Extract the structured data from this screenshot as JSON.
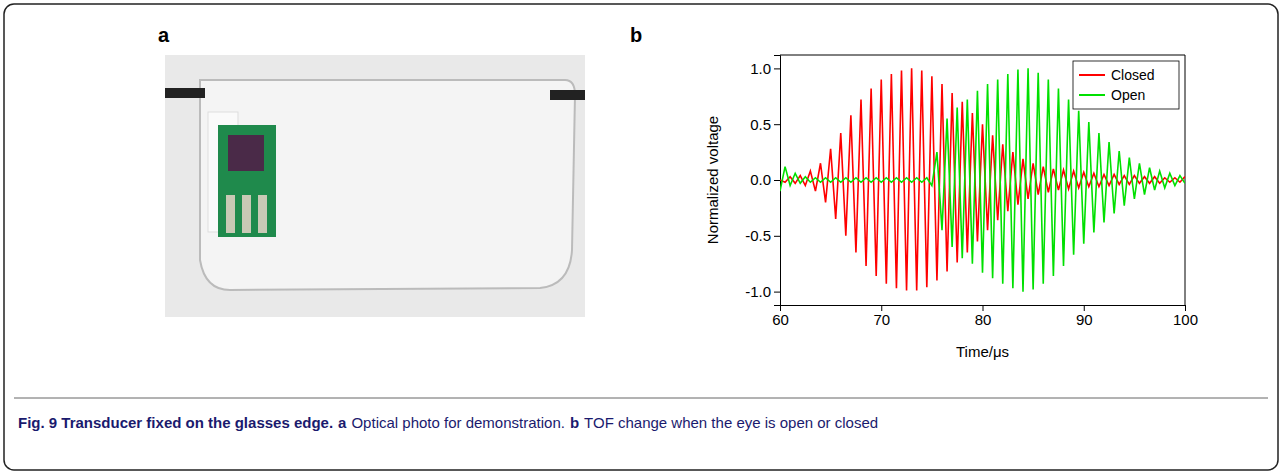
{
  "chart_data": {
    "type": "line",
    "x_label": "Time/μs",
    "y_label": "Normalized voltage",
    "x": [
      60,
      60.5,
      61,
      61.5,
      62,
      62.5,
      63,
      63.5,
      64,
      64.5,
      65,
      65.5,
      66,
      66.5,
      67,
      67.5,
      68,
      68.5,
      69,
      69.5,
      70,
      70.5,
      71,
      71.5,
      72,
      72.5,
      73,
      73.5,
      74,
      74.5,
      75,
      75.5,
      76,
      76.5,
      77,
      77.5,
      78,
      78.5,
      79,
      79.5,
      80,
      80.5,
      81,
      81.5,
      82,
      82.5,
      83,
      83.5,
      84,
      84.5,
      85,
      85.5,
      86,
      86.5,
      87,
      87.5,
      88,
      88.5,
      89,
      89.5,
      90,
      90.5,
      91,
      91.5,
      92,
      92.5,
      93,
      93.5,
      94,
      94.5,
      95,
      95.5,
      96,
      96.5,
      97,
      97.5,
      98,
      98.5,
      99,
      99.5,
      100
    ],
    "series": [
      {
        "name": "Closed",
        "color": "#ff0000",
        "values": [
          0.0,
          -0.02,
          0.03,
          -0.03,
          0.04,
          -0.05,
          0.08,
          -0.1,
          0.15,
          -0.2,
          0.28,
          -0.35,
          0.42,
          -0.5,
          0.58,
          -0.65,
          0.72,
          -0.77,
          0.82,
          -0.86,
          0.9,
          -0.93,
          0.95,
          -0.97,
          0.98,
          -0.99,
          1.0,
          -0.99,
          0.98,
          -0.96,
          0.93,
          -0.9,
          0.86,
          -0.82,
          0.78,
          -0.74,
          0.7,
          -0.65,
          0.6,
          -0.55,
          0.5,
          -0.45,
          0.4,
          -0.36,
          0.32,
          -0.28,
          0.25,
          -0.22,
          0.19,
          -0.17,
          0.15,
          -0.13,
          0.12,
          -0.11,
          0.1,
          -0.09,
          0.09,
          -0.08,
          0.08,
          -0.07,
          0.07,
          -0.06,
          0.06,
          -0.06,
          0.05,
          -0.05,
          0.05,
          -0.04,
          0.04,
          -0.04,
          0.04,
          -0.03,
          0.03,
          -0.03,
          0.03,
          -0.03,
          0.02,
          -0.02,
          0.02,
          -0.02,
          0.03
        ]
      },
      {
        "name": "Open",
        "color": "#00e000",
        "values": [
          -0.1,
          0.12,
          -0.05,
          0.06,
          -0.03,
          0.03,
          -0.02,
          0.02,
          -0.02,
          0.02,
          -0.02,
          0.02,
          -0.02,
          0.02,
          -0.02,
          0.02,
          -0.02,
          0.02,
          -0.02,
          0.02,
          -0.02,
          0.02,
          -0.02,
          0.02,
          -0.02,
          0.02,
          -0.02,
          0.02,
          -0.02,
          0.02,
          -0.05,
          0.25,
          -0.45,
          0.55,
          -0.6,
          0.65,
          -0.7,
          0.72,
          -0.75,
          0.8,
          -0.83,
          0.86,
          -0.88,
          0.9,
          -0.93,
          0.95,
          -0.97,
          0.99,
          -1.0,
          1.0,
          -0.98,
          0.96,
          -0.93,
          0.9,
          -0.86,
          0.82,
          -0.77,
          0.72,
          -0.67,
          0.62,
          -0.57,
          0.52,
          -0.47,
          0.42,
          -0.38,
          0.34,
          -0.3,
          0.26,
          -0.23,
          0.2,
          -0.17,
          0.15,
          -0.13,
          0.11,
          -0.09,
          0.08,
          -0.07,
          0.06,
          -0.05,
          0.04,
          -0.03
        ]
      }
    ],
    "xlim": [
      60,
      100
    ],
    "xticks": [
      60,
      70,
      80,
      90,
      100
    ],
    "ylim": [
      -1.12,
      1.12
    ],
    "yticks": [
      {
        "value": -1,
        "label": "-1.0"
      },
      -0.5,
      {
        "value": 0,
        "label": "0.0"
      },
      0.5,
      {
        "value": 1,
        "label": "1.0"
      }
    ],
    "grid": false,
    "legend": "upper right"
  },
  "panel_labels": [
    "a",
    "b"
  ],
  "caption": [
    {
      "text": "Fig. 9 Transducer fixed on the glasses edge.",
      "bold": true
    },
    {
      "text": "a",
      "bold": true
    },
    {
      "text": "Optical photo for demonstration.",
      "bold": false
    },
    {
      "text": "b",
      "bold": true
    },
    {
      "text": "TOF change when the eye is open or closed",
      "bold": false
    }
  ]
}
